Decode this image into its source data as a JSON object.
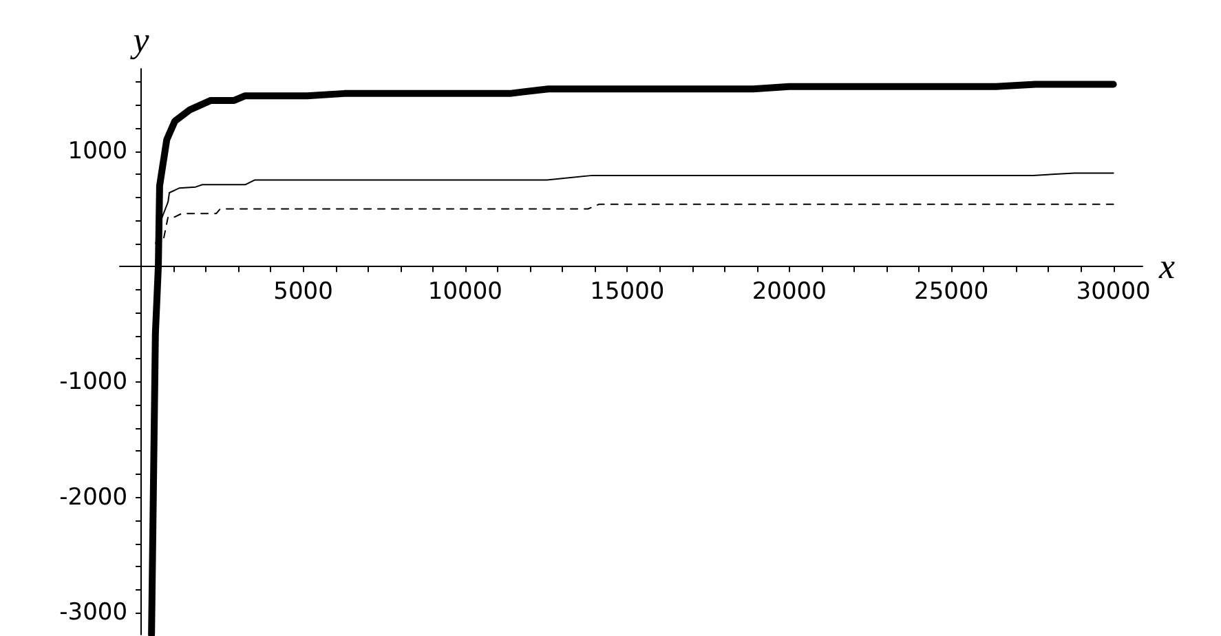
{
  "chart_data": {
    "type": "line",
    "xlabel": "x",
    "ylabel": "y",
    "xlim": [
      -660,
      30900
    ],
    "ylim": [
      -3190,
      1714
    ],
    "xticks": [
      {
        "value": 1000,
        "label": null
      },
      {
        "value": 2000,
        "label": null
      },
      {
        "value": 3000,
        "label": null
      },
      {
        "value": 4000,
        "label": null
      },
      5000,
      {
        "value": 6000,
        "label": null
      },
      {
        "value": 7000,
        "label": null
      },
      {
        "value": 8000,
        "label": null
      },
      {
        "value": 9000,
        "label": null
      },
      10000,
      {
        "value": 11000,
        "label": null
      },
      {
        "value": 12000,
        "label": null
      },
      {
        "value": 13000,
        "label": null
      },
      {
        "value": 14000,
        "label": null
      },
      15000,
      {
        "value": 16000,
        "label": null
      },
      {
        "value": 17000,
        "label": null
      },
      {
        "value": 18000,
        "label": null
      },
      {
        "value": 19000,
        "label": null
      },
      20000,
      {
        "value": 21000,
        "label": null
      },
      {
        "value": 22000,
        "label": null
      },
      {
        "value": 23000,
        "label": null
      },
      {
        "value": 24000,
        "label": null
      },
      25000,
      {
        "value": 26000,
        "label": null
      },
      {
        "value": 27000,
        "label": null
      },
      {
        "value": 28000,
        "label": null
      },
      {
        "value": 29000,
        "label": null
      },
      30000
    ],
    "yticks": [
      -3000,
      {
        "value": -2800,
        "label": null
      },
      {
        "value": -2600,
        "label": null
      },
      {
        "value": -2400,
        "label": null
      },
      {
        "value": -2200,
        "label": null
      },
      -2000,
      {
        "value": -1800,
        "label": null
      },
      {
        "value": -1600,
        "label": null
      },
      {
        "value": -1400,
        "label": null
      },
      {
        "value": -1200,
        "label": null
      },
      -1000,
      {
        "value": -800,
        "label": null
      },
      {
        "value": -600,
        "label": null
      },
      {
        "value": -400,
        "label": null
      },
      {
        "value": -200,
        "label": null
      },
      {
        "value": 200,
        "label": null
      },
      {
        "value": 400,
        "label": null
      },
      {
        "value": 600,
        "label": null
      },
      {
        "value": 800,
        "label": null
      },
      1000,
      {
        "value": 1200,
        "label": null
      },
      {
        "value": 1400,
        "label": null
      },
      {
        "value": 1600,
        "label": null
      }
    ],
    "grid": false,
    "marker": "none",
    "series": [
      {
        "color": "#000000",
        "line_style": "solid",
        "x": [
          320,
          440,
          530,
          570,
          790,
          1040,
          1510,
          2150,
          2870,
          3210,
          5120,
          6270,
          11370,
          12560,
          18890,
          20000,
          26370,
          27600,
          30000
        ],
        "values": [
          -3190,
          -580,
          0,
          700,
          1100,
          1260,
          1360,
          1440,
          1440,
          1480,
          1480,
          1500,
          1500,
          1540,
          1540,
          1560,
          1560,
          1580,
          1580
        ]
      },
      {
        "color": "#000000",
        "line_style": "solid",
        "x": [
          450,
          610,
          830,
          870,
          1170,
          1680,
          1890,
          3210,
          3500,
          12520,
          13920,
          27520,
          28800,
          30000
        ],
        "values": [
          200,
          400,
          560,
          640,
          680,
          690,
          710,
          710,
          750,
          750,
          790,
          790,
          810,
          810
        ]
      },
      {
        "color": "#000000",
        "line_style": "dashed",
        "x": [
          700,
          830,
          1040,
          1250,
          2320,
          2440,
          13790,
          14130,
          30000
        ],
        "values": [
          250,
          430,
          430,
          460,
          460,
          500,
          500,
          540,
          540
        ]
      }
    ]
  }
}
